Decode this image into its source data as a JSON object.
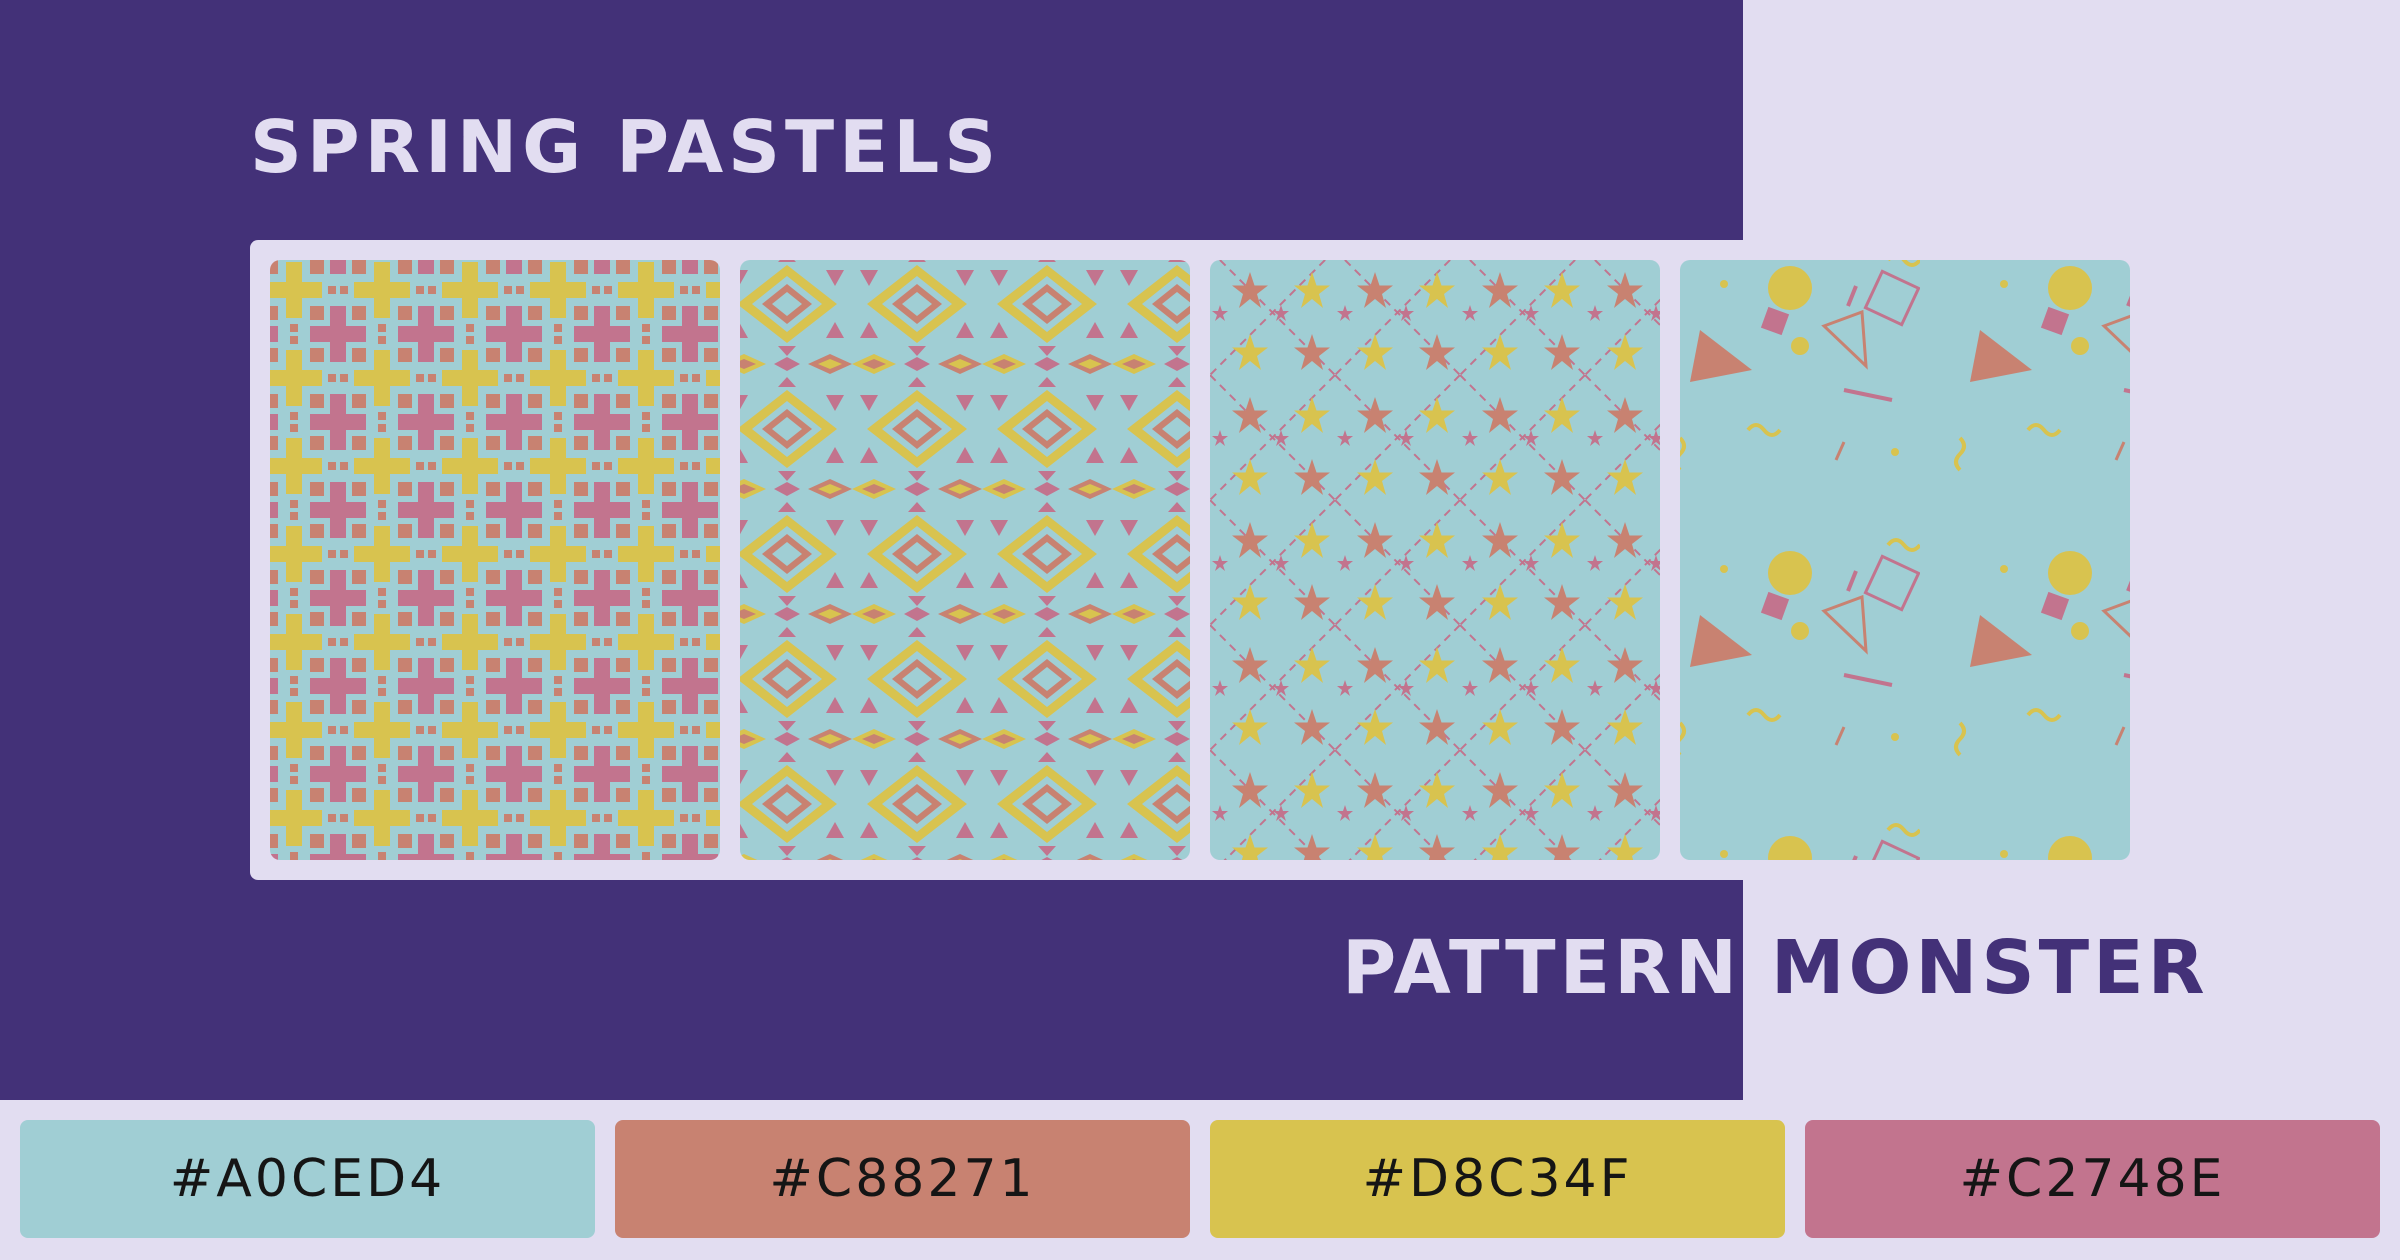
{
  "title": "SPRING PASTELS",
  "brand": {
    "word1": "PATTERN",
    "word2": "MONSTER"
  },
  "colors": {
    "purple": "#433178",
    "lavender": "#E2DDF1",
    "teal": "#A0CED4",
    "salmon": "#C88271",
    "yellow": "#D8C34F",
    "pink": "#C2748E"
  },
  "patterns": [
    {
      "name": "crosses-and-squares"
    },
    {
      "name": "aztec-diamonds"
    },
    {
      "name": "stars-diagonal-grid"
    },
    {
      "name": "memphis-shapes"
    }
  ],
  "swatches": [
    {
      "label": "#A0CED4",
      "color": "#A0CED4"
    },
    {
      "label": "#C88271",
      "color": "#C88271"
    },
    {
      "label": "#D8C34F",
      "color": "#D8C34F"
    },
    {
      "label": "#C2748E",
      "color": "#C2748E"
    }
  ]
}
